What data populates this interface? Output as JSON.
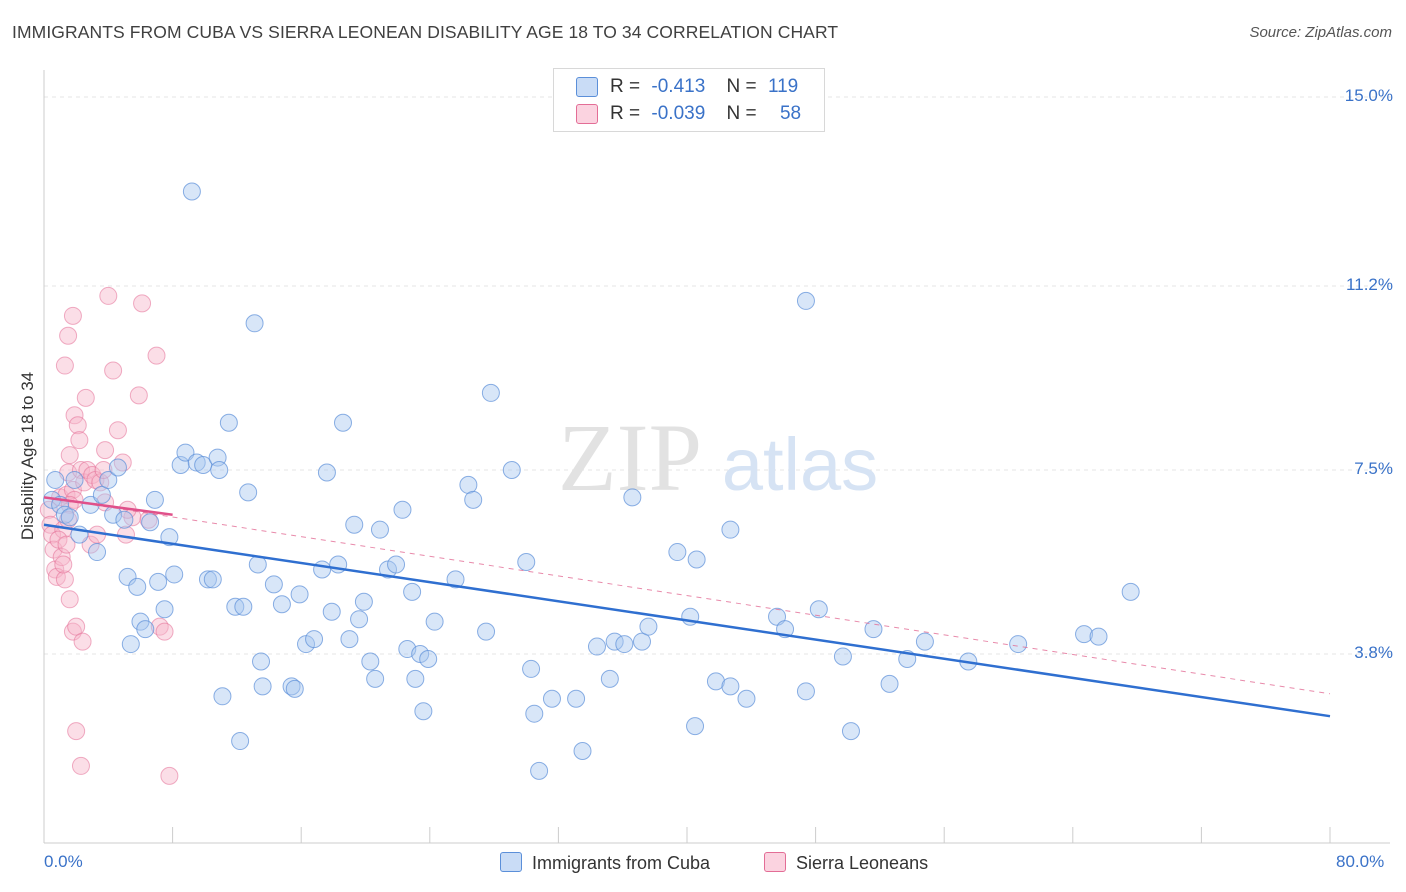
{
  "header": {
    "title": "IMMIGRANTS FROM CUBA VS SIERRA LEONEAN DISABILITY AGE 18 TO 34 CORRELATION CHART",
    "source": "Source: ZipAtlas.com"
  },
  "watermark": {
    "zip": "ZIP",
    "atlas": "atlas"
  },
  "legend": {
    "rows": [
      {
        "r_label": "R =",
        "r_value": "-0.413",
        "n_label": "N =",
        "n_value": "119",
        "color": "#a9c8f0"
      },
      {
        "r_label": "R =",
        "r_value": "-0.039",
        "n_label": "N =",
        "n_value": "58",
        "color": "#f6b6c9"
      }
    ]
  },
  "chart_data": {
    "type": "scatter",
    "title": "IMMIGRANTS FROM CUBA VS SIERRA LEONEAN DISABILITY AGE 18 TO 34 CORRELATION CHART",
    "xlabel": "",
    "ylabel": "Disability Age 18 to 34",
    "xlim": [
      0,
      80
    ],
    "ylim": [
      0,
      15.5
    ],
    "x_tick_labels": {
      "min": "0.0%",
      "max": "80.0%"
    },
    "y_ticks": [
      3.8,
      7.5,
      11.2,
      15.0
    ],
    "y_tick_labels": [
      "3.8%",
      "7.5%",
      "11.2%",
      "15.0%"
    ],
    "grid": true,
    "legend_position": "top-center",
    "colors": {
      "cuba": "#5b8fd9",
      "cuba_fill": "#a9c8f0",
      "sierra": "#e36d96",
      "sierra_fill": "#f6b6c9",
      "tick_text": "#3a72c8"
    },
    "series": [
      {
        "name": "Immigrants from Cuba",
        "trend": {
          "x": [
            0,
            80
          ],
          "y": [
            6.4,
            2.55
          ]
        },
        "points": [
          [
            0.5,
            6.9
          ],
          [
            0.7,
            7.3
          ],
          [
            1.0,
            6.8
          ],
          [
            1.3,
            6.6
          ],
          [
            1.6,
            6.55
          ],
          [
            1.9,
            7.3
          ],
          [
            2.2,
            6.2
          ],
          [
            2.9,
            6.8
          ],
          [
            3.3,
            5.85
          ],
          [
            3.6,
            7.0
          ],
          [
            4.0,
            7.3
          ],
          [
            4.3,
            6.6
          ],
          [
            4.6,
            7.55
          ],
          [
            5.0,
            6.5
          ],
          [
            5.2,
            5.35
          ],
          [
            5.4,
            4.0
          ],
          [
            5.8,
            5.15
          ],
          [
            6.0,
            4.45
          ],
          [
            6.3,
            4.3
          ],
          [
            6.6,
            6.45
          ],
          [
            6.9,
            6.9
          ],
          [
            7.1,
            5.25
          ],
          [
            7.5,
            4.7
          ],
          [
            7.8,
            6.15
          ],
          [
            8.1,
            5.4
          ],
          [
            8.5,
            7.6
          ],
          [
            8.8,
            7.85
          ],
          [
            9.2,
            13.1
          ],
          [
            9.5,
            7.65
          ],
          [
            9.9,
            7.6
          ],
          [
            10.2,
            5.3
          ],
          [
            10.5,
            5.3
          ],
          [
            10.8,
            7.75
          ],
          [
            10.9,
            7.5
          ],
          [
            11.1,
            2.95
          ],
          [
            11.5,
            8.45
          ],
          [
            11.9,
            4.75
          ],
          [
            12.2,
            2.05
          ],
          [
            12.4,
            4.75
          ],
          [
            12.7,
            7.05
          ],
          [
            13.1,
            10.45
          ],
          [
            13.3,
            5.6
          ],
          [
            13.5,
            3.65
          ],
          [
            13.6,
            3.15
          ],
          [
            14.3,
            5.2
          ],
          [
            14.8,
            4.8
          ],
          [
            15.4,
            3.15
          ],
          [
            15.6,
            3.1
          ],
          [
            15.9,
            5.0
          ],
          [
            16.3,
            4.0
          ],
          [
            16.8,
            4.1
          ],
          [
            17.3,
            5.5
          ],
          [
            17.6,
            7.45
          ],
          [
            17.9,
            4.65
          ],
          [
            18.3,
            5.6
          ],
          [
            18.6,
            8.45
          ],
          [
            19.0,
            4.1
          ],
          [
            19.3,
            6.4
          ],
          [
            19.6,
            4.5
          ],
          [
            19.9,
            4.85
          ],
          [
            20.3,
            3.65
          ],
          [
            20.6,
            3.3
          ],
          [
            20.9,
            6.3
          ],
          [
            21.4,
            5.5
          ],
          [
            21.9,
            5.6
          ],
          [
            22.3,
            6.7
          ],
          [
            22.6,
            3.9
          ],
          [
            22.9,
            5.05
          ],
          [
            23.1,
            3.3
          ],
          [
            23.4,
            3.8
          ],
          [
            23.6,
            2.65
          ],
          [
            23.9,
            3.7
          ],
          [
            24.3,
            4.45
          ],
          [
            25.6,
            5.3
          ],
          [
            26.4,
            7.2
          ],
          [
            26.7,
            6.9
          ],
          [
            27.5,
            4.25
          ],
          [
            27.8,
            9.05
          ],
          [
            29.1,
            7.5
          ],
          [
            30.0,
            5.65
          ],
          [
            30.3,
            3.5
          ],
          [
            30.5,
            2.6
          ],
          [
            31.6,
            2.9
          ],
          [
            30.8,
            1.45
          ],
          [
            33.1,
            2.9
          ],
          [
            33.5,
            1.85
          ],
          [
            34.4,
            3.95
          ],
          [
            35.2,
            3.3
          ],
          [
            35.5,
            4.05
          ],
          [
            36.1,
            4.0
          ],
          [
            36.6,
            6.95
          ],
          [
            37.2,
            4.05
          ],
          [
            37.6,
            4.35
          ],
          [
            39.4,
            5.85
          ],
          [
            40.2,
            4.55
          ],
          [
            40.5,
            2.35
          ],
          [
            40.6,
            5.7
          ],
          [
            41.8,
            3.25
          ],
          [
            42.7,
            3.15
          ],
          [
            42.7,
            6.3
          ],
          [
            43.7,
            2.9
          ],
          [
            45.6,
            4.55
          ],
          [
            46.1,
            4.3
          ],
          [
            47.4,
            10.9
          ],
          [
            47.4,
            3.05
          ],
          [
            48.2,
            4.7
          ],
          [
            49.7,
            3.75
          ],
          [
            50.2,
            2.25
          ],
          [
            51.6,
            4.3
          ],
          [
            52.6,
            3.2
          ],
          [
            53.7,
            3.7
          ],
          [
            54.8,
            4.05
          ],
          [
            57.5,
            3.65
          ],
          [
            60.6,
            4.0
          ],
          [
            64.7,
            4.2
          ],
          [
            65.6,
            4.15
          ],
          [
            67.6,
            5.05
          ]
        ]
      },
      {
        "name": "Sierra Leoneans",
        "trend": {
          "x": [
            0,
            8
          ],
          "y": [
            6.95,
            6.6
          ]
        },
        "trend_dashed": {
          "x": [
            0,
            80
          ],
          "y": [
            6.95,
            3.0
          ]
        },
        "points": [
          [
            0.3,
            6.7
          ],
          [
            0.4,
            6.4
          ],
          [
            0.5,
            6.2
          ],
          [
            0.6,
            5.9
          ],
          [
            0.7,
            5.5
          ],
          [
            0.8,
            5.35
          ],
          [
            1.0,
            6.95
          ],
          [
            1.1,
            5.75
          ],
          [
            1.2,
            6.3
          ],
          [
            0.9,
            6.1
          ],
          [
            1.4,
            7.0
          ],
          [
            1.5,
            7.45
          ],
          [
            1.6,
            7.8
          ],
          [
            1.8,
            7.1
          ],
          [
            1.3,
            9.6
          ],
          [
            1.5,
            10.2
          ],
          [
            1.8,
            10.6
          ],
          [
            1.9,
            8.6
          ],
          [
            2.1,
            8.4
          ],
          [
            2.2,
            8.1
          ],
          [
            2.3,
            7.5
          ],
          [
            2.5,
            7.25
          ],
          [
            2.6,
            8.95
          ],
          [
            2.7,
            7.5
          ],
          [
            1.9,
            6.9
          ],
          [
            1.6,
            6.8
          ],
          [
            1.5,
            6.5
          ],
          [
            1.4,
            6.0
          ],
          [
            1.3,
            5.3
          ],
          [
            1.2,
            5.6
          ],
          [
            1.6,
            4.9
          ],
          [
            1.8,
            4.25
          ],
          [
            2.0,
            4.35
          ],
          [
            2.4,
            4.05
          ],
          [
            3.0,
            7.4
          ],
          [
            3.2,
            7.3
          ],
          [
            3.5,
            7.25
          ],
          [
            3.7,
            7.5
          ],
          [
            3.8,
            7.9
          ],
          [
            4.0,
            11.0
          ],
          [
            4.3,
            9.5
          ],
          [
            4.6,
            8.3
          ],
          [
            4.9,
            7.65
          ],
          [
            5.1,
            6.2
          ],
          [
            5.5,
            6.55
          ],
          [
            5.9,
            9.0
          ],
          [
            6.1,
            10.85
          ],
          [
            6.5,
            6.5
          ],
          [
            7.0,
            9.8
          ],
          [
            7.2,
            4.35
          ],
          [
            7.5,
            4.25
          ],
          [
            2.0,
            2.25
          ],
          [
            2.3,
            1.55
          ],
          [
            7.8,
            1.35
          ],
          [
            2.9,
            6.0
          ],
          [
            3.3,
            6.2
          ],
          [
            3.8,
            6.85
          ],
          [
            5.2,
            6.7
          ]
        ]
      }
    ]
  },
  "y_axis_title": "Disability Age 18 to 34",
  "x_axis": {
    "min_label": "0.0%",
    "max_label": "80.0%"
  },
  "bottom_legend": [
    {
      "label": "Immigrants from Cuba",
      "color": "#a9c8f0"
    },
    {
      "label": "Sierra Leoneans",
      "color": "#f6b6c9"
    }
  ]
}
